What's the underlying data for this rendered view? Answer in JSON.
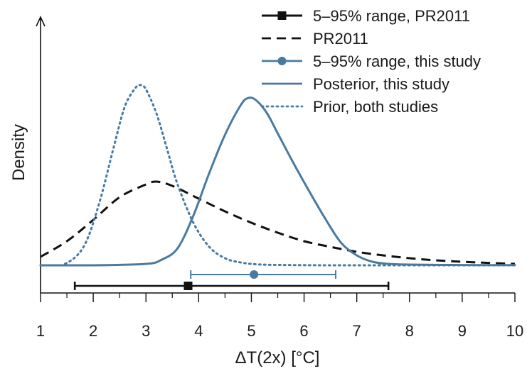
{
  "chart_data": {
    "type": "line",
    "xlabel": "ΔT(2x) [°C]",
    "ylabel": "Density",
    "xlim": [
      1,
      10
    ],
    "x_ticks": [
      "1",
      "2",
      "3",
      "4",
      "5",
      "6",
      "7",
      "8",
      "9",
      "10"
    ],
    "y_ticks_shown": false,
    "grid": false,
    "legend_position": "top-right",
    "colors": {
      "pr2011": "#111111",
      "this_study": "#4a7aa0"
    },
    "legend": [
      {
        "label": "5–95% range, PR2011",
        "style": "solid-square",
        "color": "#111111"
      },
      {
        "label": "PR2011",
        "style": "dashed",
        "color": "#111111"
      },
      {
        "label": "5–95% range, this study",
        "style": "solid-circle",
        "color": "#4a7aa0"
      },
      {
        "label": "Posterior, this study",
        "style": "solid",
        "color": "#4a7aa0"
      },
      {
        "label": "Prior, both studies",
        "style": "dotted",
        "color": "#4a7aa0"
      }
    ],
    "series": [
      {
        "name": "PR2011",
        "style": "dashed",
        "color": "#111111",
        "x": [
          1.0,
          1.5,
          2.0,
          2.5,
          3.0,
          3.2,
          3.5,
          4.0,
          4.5,
          5.0,
          5.5,
          6.0,
          6.5,
          7.0,
          7.5,
          8.0,
          8.5,
          9.0,
          9.5,
          10.0
        ],
        "y": [
          0.06,
          0.17,
          0.32,
          0.48,
          0.57,
          0.59,
          0.56,
          0.47,
          0.38,
          0.3,
          0.23,
          0.17,
          0.13,
          0.095,
          0.07,
          0.05,
          0.035,
          0.025,
          0.017,
          0.01
        ]
      },
      {
        "name": "Posterior, this study",
        "style": "solid",
        "color": "#4a7aa0",
        "x": [
          1.0,
          2.0,
          3.0,
          3.3,
          3.6,
          3.9,
          4.2,
          4.5,
          4.8,
          4.95,
          5.1,
          5.3,
          5.5,
          5.8,
          6.1,
          6.4,
          6.7,
          7.0,
          7.3,
          7.6,
          8.0,
          9.0,
          10.0
        ],
        "y": [
          0.0,
          0.0,
          0.01,
          0.04,
          0.12,
          0.35,
          0.65,
          0.92,
          1.13,
          1.18,
          1.16,
          1.07,
          0.93,
          0.72,
          0.52,
          0.33,
          0.16,
          0.07,
          0.025,
          0.01,
          0.005,
          0.002,
          0.001
        ]
      },
      {
        "name": "Prior, both studies",
        "style": "dotted",
        "color": "#4a7aa0",
        "x": [
          1.0,
          1.4,
          1.8,
          2.1,
          2.4,
          2.6,
          2.8,
          2.9,
          3.0,
          3.2,
          3.4,
          3.6,
          3.9,
          4.2,
          4.5,
          4.8,
          5.2,
          6.0,
          7.0,
          10.0
        ],
        "y": [
          0.0,
          0.0,
          0.12,
          0.42,
          0.85,
          1.12,
          1.25,
          1.27,
          1.24,
          1.07,
          0.82,
          0.57,
          0.3,
          0.13,
          0.05,
          0.02,
          0.005,
          0.001,
          0.0,
          0.0
        ]
      }
    ],
    "ranges": [
      {
        "name": "5–95% range, PR2011",
        "low": 1.65,
        "high": 7.6,
        "median": 3.8,
        "marker": "square",
        "color": "#111111"
      },
      {
        "name": "5–95% range, this study",
        "low": 3.85,
        "high": 6.6,
        "median": 5.05,
        "marker": "circle",
        "color": "#4a7aa0"
      }
    ]
  }
}
